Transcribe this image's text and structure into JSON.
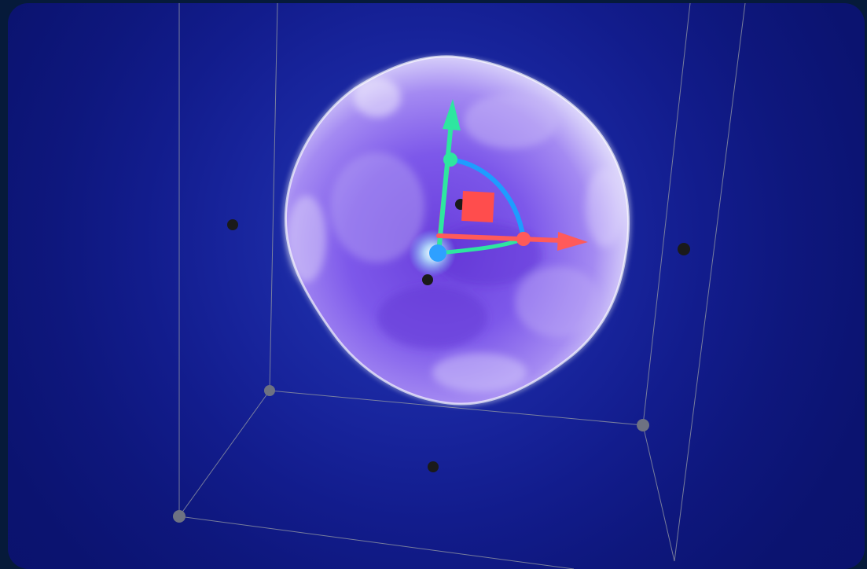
{
  "scene": {
    "name": "3d-viewport",
    "colors": {
      "background_outer": "#061a3a",
      "background_inner": "#2435b8",
      "blob": "#7a52e6",
      "blob_highlight": "#ffffff",
      "axis_x": "#ff5a5a",
      "axis_y": "#2ee6a0",
      "axis_z": "#2ea0ff",
      "rotation_arc": "#1e9cff",
      "bounding_box": "#8a8fa0",
      "control_point": "#1a1a1a"
    },
    "icons": {
      "gizmo": "transform-gizmo-icon",
      "scale_handle": "scale-square-icon"
    }
  }
}
